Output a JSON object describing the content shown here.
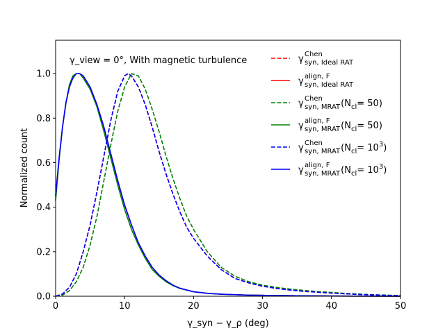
{
  "chart_data": {
    "type": "line",
    "annotation": "γ_view = 0°, With magnetic turbulence",
    "xlabel": "γ_syn − γ_ρ (deg)",
    "ylabel": "Normalized count",
    "xlim": [
      0,
      50
    ],
    "ylim": [
      0,
      1.15
    ],
    "xticks": [
      0,
      10,
      20,
      30,
      40,
      50
    ],
    "yticks": [
      0.0,
      0.2,
      0.4,
      0.6,
      0.8,
      1.0
    ],
    "xtick_labels": [
      "0",
      "10",
      "20",
      "30",
      "40",
      "50"
    ],
    "ytick_labels": [
      "0.0",
      "0.2",
      "0.4",
      "0.6",
      "0.8",
      "1.0"
    ],
    "grid": false,
    "legend_position": "top-right",
    "series": [
      {
        "name": "γ^Chen_syn,Ideal RAT",
        "legend_label": "γ",
        "legend_sup": "Chen",
        "legend_sub": "syn, Ideal RAT",
        "legend_suffix": "",
        "color": "#ff0000",
        "dash": true,
        "x": [
          0,
          1,
          2,
          3,
          4,
          5,
          6,
          7,
          8,
          9,
          10,
          10.5,
          11,
          12,
          13,
          14,
          15,
          16,
          17,
          18,
          19,
          20,
          22,
          24,
          26,
          28,
          30,
          32,
          34,
          36,
          38,
          40,
          42,
          44,
          46,
          48,
          50
        ],
        "y": [
          0,
          0.01,
          0.04,
          0.1,
          0.2,
          0.32,
          0.47,
          0.63,
          0.79,
          0.92,
          0.99,
          1.0,
          0.99,
          0.94,
          0.86,
          0.76,
          0.65,
          0.55,
          0.46,
          0.38,
          0.31,
          0.26,
          0.18,
          0.12,
          0.08,
          0.06,
          0.045,
          0.035,
          0.028,
          0.022,
          0.018,
          0.014,
          0.011,
          0.008,
          0.006,
          0.004,
          0.003
        ]
      },
      {
        "name": "γ^align,F_syn,Ideal RAT",
        "legend_label": "γ",
        "legend_sup": "align, F",
        "legend_sub": "syn, Ideal RAT",
        "legend_suffix": "",
        "color": "#ff0000",
        "dash": false,
        "x": [
          0,
          0.5,
          1,
          1.5,
          2,
          2.5,
          3,
          3.5,
          4,
          5,
          6,
          7,
          8,
          9,
          10,
          11,
          12,
          13,
          14,
          15,
          16,
          17,
          18,
          20,
          22,
          24,
          26,
          28,
          30,
          35,
          40,
          45,
          50
        ],
        "y": [
          0.45,
          0.62,
          0.76,
          0.87,
          0.94,
          0.98,
          1.0,
          1.0,
          0.99,
          0.94,
          0.86,
          0.76,
          0.64,
          0.52,
          0.41,
          0.32,
          0.24,
          0.18,
          0.13,
          0.095,
          0.07,
          0.05,
          0.036,
          0.02,
          0.013,
          0.009,
          0.007,
          0.005,
          0.004,
          0.002,
          0.001,
          0.0005,
          0.0002
        ]
      },
      {
        "name": "γ^Chen_syn,MRAT (N_cl = 50)",
        "legend_label": "γ",
        "legend_sup": "Chen",
        "legend_sub": "syn, MRAT",
        "legend_suffix": " (N",
        "legend_suffix_sub": "cl",
        "legend_suffix_end": " = 50)",
        "color": "#008000",
        "dash": true,
        "x": [
          0,
          1,
          2,
          3,
          4,
          5,
          6,
          7,
          8,
          9,
          10,
          11,
          12,
          13,
          14,
          15,
          16,
          17,
          18,
          19,
          20,
          22,
          24,
          26,
          28,
          30,
          32,
          34,
          36,
          38,
          40,
          42,
          44,
          46,
          48,
          50
        ],
        "y": [
          0,
          0.005,
          0.025,
          0.065,
          0.13,
          0.23,
          0.36,
          0.52,
          0.68,
          0.83,
          0.94,
          1.0,
          0.99,
          0.93,
          0.84,
          0.74,
          0.63,
          0.53,
          0.44,
          0.36,
          0.3,
          0.2,
          0.13,
          0.09,
          0.065,
          0.05,
          0.04,
          0.032,
          0.026,
          0.021,
          0.017,
          0.013,
          0.01,
          0.007,
          0.005,
          0.003
        ]
      },
      {
        "name": "γ^align,F_syn,MRAT (N_cl = 50)",
        "legend_label": "γ",
        "legend_sup": "align, F",
        "legend_sub": "syn, MRAT",
        "legend_suffix": " (N",
        "legend_suffix_sub": "cl",
        "legend_suffix_end": " = 50)",
        "color": "#008000",
        "dash": false,
        "x": [
          0,
          0.5,
          1,
          1.5,
          2,
          2.5,
          3,
          3.5,
          4,
          5,
          6,
          7,
          8,
          9,
          10,
          11,
          12,
          13,
          14,
          15,
          16,
          17,
          18,
          20,
          22,
          24,
          26,
          28,
          30,
          35,
          40,
          45,
          50
        ],
        "y": [
          0.43,
          0.61,
          0.76,
          0.87,
          0.95,
          0.99,
          1.0,
          1.0,
          0.98,
          0.93,
          0.85,
          0.74,
          0.62,
          0.5,
          0.39,
          0.3,
          0.23,
          0.17,
          0.12,
          0.09,
          0.065,
          0.048,
          0.035,
          0.02,
          0.013,
          0.009,
          0.007,
          0.005,
          0.004,
          0.002,
          0.001,
          0.0005,
          0.0002
        ]
      },
      {
        "name": "γ^Chen_syn,MRAT (N_cl = 10^3)",
        "legend_label": "γ",
        "legend_sup": "Chen",
        "legend_sub": "syn, MRAT",
        "legend_suffix": " (N",
        "legend_suffix_sub": "cl",
        "legend_suffix_end": " = 10",
        "legend_suffix_sup": "3",
        "legend_suffix_close": ")",
        "color": "#0000ff",
        "dash": true,
        "x": [
          0,
          1,
          2,
          3,
          4,
          5,
          6,
          7,
          8,
          9,
          10,
          10.5,
          11,
          12,
          13,
          14,
          15,
          16,
          17,
          18,
          19,
          20,
          22,
          24,
          26,
          28,
          30,
          32,
          34,
          36,
          38,
          40,
          42,
          44,
          46,
          48,
          50
        ],
        "y": [
          0,
          0.01,
          0.04,
          0.1,
          0.2,
          0.32,
          0.47,
          0.63,
          0.79,
          0.92,
          0.99,
          1.0,
          0.99,
          0.94,
          0.86,
          0.76,
          0.65,
          0.55,
          0.46,
          0.38,
          0.31,
          0.26,
          0.18,
          0.12,
          0.08,
          0.06,
          0.045,
          0.035,
          0.028,
          0.022,
          0.018,
          0.014,
          0.011,
          0.008,
          0.006,
          0.004,
          0.003
        ]
      },
      {
        "name": "γ^align,F_syn,MRAT (N_cl = 10^3)",
        "legend_label": "γ",
        "legend_sup": "align, F",
        "legend_sub": "syn, MRAT",
        "legend_suffix": " (N",
        "legend_suffix_sub": "cl",
        "legend_suffix_end": " = 10",
        "legend_suffix_sup": "3",
        "legend_suffix_close": ")",
        "color": "#0000ff",
        "dash": false,
        "x": [
          0,
          0.5,
          1,
          1.5,
          2,
          2.5,
          3,
          3.5,
          4,
          5,
          6,
          7,
          8,
          9,
          10,
          11,
          12,
          13,
          14,
          15,
          16,
          17,
          18,
          20,
          22,
          24,
          26,
          28,
          30,
          35,
          40,
          45,
          50
        ],
        "y": [
          0.45,
          0.62,
          0.76,
          0.87,
          0.94,
          0.98,
          1.0,
          1.0,
          0.99,
          0.94,
          0.86,
          0.76,
          0.64,
          0.52,
          0.41,
          0.32,
          0.24,
          0.18,
          0.13,
          0.095,
          0.07,
          0.05,
          0.036,
          0.02,
          0.013,
          0.009,
          0.007,
          0.005,
          0.004,
          0.002,
          0.001,
          0.0005,
          0.0002
        ]
      }
    ]
  }
}
